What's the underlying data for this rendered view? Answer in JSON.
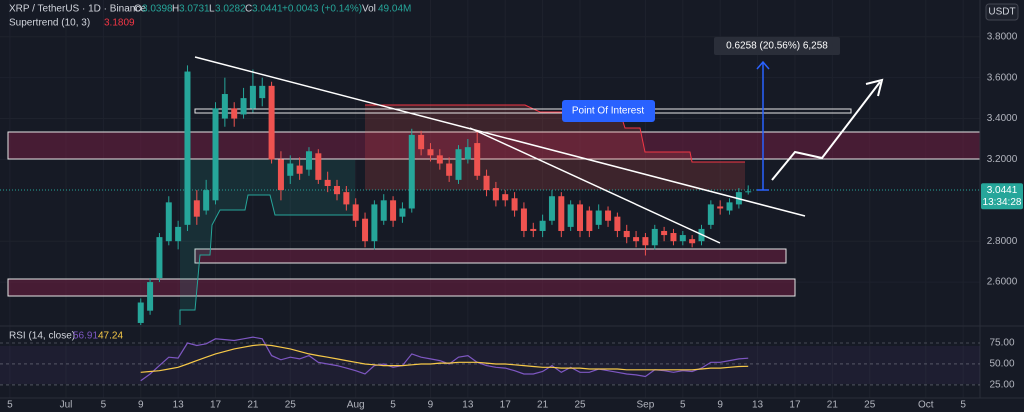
{
  "chart_data": {
    "type": "candlestick",
    "symbol": "XRP / TetherUS · 1D · Binance",
    "currency": "USDT",
    "readout_labels": [
      "O",
      "H",
      "L",
      "C"
    ],
    "change": "+0.0043 (+0.14%)",
    "volume_label": "Vol",
    "volume": "49.04M",
    "countdown": "13:34:28",
    "up_color": "#26a69a",
    "down_color": "#ef5350",
    "grid": true,
    "x": [
      8,
      9,
      10,
      11,
      12,
      13,
      14,
      15,
      16,
      17,
      18,
      19,
      20,
      21,
      22,
      23,
      24,
      25,
      26,
      27,
      28,
      29,
      30,
      31,
      32,
      33,
      34,
      35,
      36,
      37,
      38,
      39,
      40,
      41,
      42,
      43,
      44,
      45,
      46,
      47,
      48,
      49,
      50,
      51,
      52,
      53,
      54,
      55,
      56,
      57,
      58,
      59,
      60,
      61,
      62,
      63,
      64,
      65,
      66,
      67,
      68,
      69,
      70,
      71,
      72,
      73
    ],
    "open": [
      2.4,
      2.46,
      2.62,
      2.8,
      2.8,
      2.88,
      3.0,
      2.95,
      3.0,
      3.4,
      3.45,
      3.42,
      3.45,
      3.5,
      3.56,
      3.2,
      3.12,
      3.17,
      3.15,
      3.23,
      3.1,
      3.07,
      3.04,
      2.98,
      2.91,
      2.8,
      2.9,
      3.0,
      2.92,
      2.96,
      3.32,
      3.25,
      3.22,
      3.18,
      3.1,
      3.2,
      3.28,
      3.12,
      3.06,
      3.03,
      3.01,
      2.96,
      2.86,
      2.85,
      2.9,
      3.02,
      2.87,
      2.98,
      2.95,
      2.88,
      2.95,
      2.92,
      2.85,
      2.82,
      2.82,
      2.78,
      2.85,
      2.84,
      2.8,
      2.81,
      2.8,
      2.88,
      2.97,
      2.95,
      2.98,
      3.0398
    ],
    "high": [
      2.52,
      2.62,
      2.84,
      3.02,
      2.9,
      3.66,
      3.05,
      3.1,
      3.48,
      3.6,
      3.48,
      3.55,
      3.64,
      3.6,
      3.58,
      3.24,
      3.22,
      3.21,
      3.26,
      3.25,
      3.14,
      3.1,
      3.07,
      3.01,
      2.94,
      3.0,
      3.03,
      3.02,
      2.99,
      3.35,
      3.34,
      3.28,
      3.25,
      3.21,
      3.27,
      3.3,
      3.34,
      3.15,
      3.09,
      3.05,
      3.04,
      2.99,
      2.89,
      2.93,
      3.05,
      3.04,
      3.0,
      3.0,
      2.97,
      2.98,
      2.97,
      2.94,
      2.88,
      2.85,
      2.84,
      2.88,
      2.87,
      2.86,
      2.85,
      2.83,
      2.88,
      3.0,
      3.0,
      3.01,
      3.06,
      3.0731
    ],
    "low": [
      2.39,
      2.44,
      2.6,
      2.78,
      2.76,
      2.85,
      2.88,
      2.93,
      2.98,
      3.36,
      3.36,
      3.4,
      3.43,
      3.46,
      3.18,
      3.0,
      3.08,
      3.1,
      3.12,
      3.08,
      3.04,
      3.0,
      2.95,
      2.87,
      2.77,
      2.76,
      2.88,
      2.87,
      2.89,
      2.94,
      3.22,
      3.19,
      3.15,
      3.09,
      3.08,
      3.18,
      3.1,
      3.02,
      2.97,
      2.97,
      2.92,
      2.82,
      2.82,
      2.82,
      2.88,
      2.82,
      2.85,
      2.82,
      2.82,
      2.86,
      2.87,
      2.82,
      2.79,
      2.77,
      2.73,
      2.76,
      2.8,
      2.78,
      2.78,
      2.77,
      2.78,
      2.86,
      2.93,
      2.93,
      2.96,
      3.0282
    ],
    "close": [
      2.5,
      2.6,
      2.82,
      2.99,
      2.87,
      3.63,
      2.92,
      3.05,
      3.45,
      3.52,
      3.4,
      3.5,
      3.56,
      3.56,
      3.2,
      3.05,
      3.18,
      3.13,
      3.24,
      3.1,
      3.07,
      3.03,
      2.98,
      2.9,
      2.8,
      2.98,
      3.0,
      2.9,
      2.96,
      3.32,
      3.25,
      3.22,
      3.18,
      3.12,
      3.25,
      3.26,
      3.12,
      3.05,
      3.0,
      3.0,
      2.95,
      2.85,
      2.85,
      2.9,
      3.02,
      2.85,
      2.98,
      2.85,
      2.85,
      2.95,
      2.9,
      2.85,
      2.82,
      2.8,
      2.78,
      2.86,
      2.83,
      2.8,
      2.83,
      2.79,
      2.86,
      2.98,
      2.96,
      2.99,
      3.04,
      3.0441
    ],
    "xlim": [
      -7.06,
      97.8
    ],
    "xticks": [
      {
        "value": -6,
        "label": "5"
      },
      {
        "value": 0,
        "label": "Jul"
      },
      {
        "value": 4,
        "label": "5"
      },
      {
        "value": 8,
        "label": "9"
      },
      {
        "value": 12,
        "label": "13"
      },
      {
        "value": 16,
        "label": "17"
      },
      {
        "value": 20,
        "label": "21"
      },
      {
        "value": 24,
        "label": "25"
      },
      {
        "value": 31,
        "label": "Aug"
      },
      {
        "value": 35,
        "label": "5"
      },
      {
        "value": 39,
        "label": "9"
      },
      {
        "value": 43,
        "label": "13"
      },
      {
        "value": 47,
        "label": "17"
      },
      {
        "value": 51,
        "label": "21"
      },
      {
        "value": 55,
        "label": "25"
      },
      {
        "value": 62,
        "label": "Sep"
      },
      {
        "value": 66,
        "label": "5"
      },
      {
        "value": 70,
        "label": "9"
      },
      {
        "value": 74,
        "label": "13"
      },
      {
        "value": 78,
        "label": "17"
      },
      {
        "value": 82,
        "label": "21"
      },
      {
        "value": 86,
        "label": "25"
      },
      {
        "value": 92,
        "label": "Oct"
      },
      {
        "value": 96,
        "label": "5"
      }
    ],
    "ylim": [
      2.39,
      3.98
    ],
    "yticks": [
      {
        "value": 2.6,
        "label": "2.6000"
      },
      {
        "value": 2.8,
        "label": "2.8000"
      },
      {
        "value": 3.2,
        "label": "3.2000"
      },
      {
        "value": 3.4,
        "label": "3.4000"
      },
      {
        "value": 3.6,
        "label": "3.6000"
      },
      {
        "value": 3.8,
        "label": "3.8000"
      }
    ],
    "supertrend": {
      "name": "Supertrend (10, 3)",
      "value": 3.1809,
      "color": "#f23645"
    },
    "rsi": {
      "name": "RSI (14, close)",
      "color": "#7e57c2",
      "values": [
        30,
        38,
        48,
        58,
        57,
        75,
        72,
        74,
        80,
        79,
        78,
        80,
        82,
        80,
        60,
        55,
        58,
        56,
        60,
        52,
        50,
        48,
        45,
        42,
        38,
        48,
        50,
        46,
        48,
        62,
        58,
        56,
        54,
        50,
        58,
        60,
        52,
        48,
        46,
        45,
        42,
        38,
        38,
        41,
        48,
        40,
        46,
        40,
        40,
        44,
        42,
        40,
        38,
        37,
        35,
        43,
        42,
        40,
        42,
        41,
        45,
        52,
        52,
        54,
        56,
        56.91
      ]
    },
    "rsi_ma": {
      "color": "#f7c948",
      "values": [
        40,
        41,
        42,
        44,
        46,
        50,
        54,
        58,
        62,
        65,
        68,
        70,
        72,
        73,
        72,
        70,
        68,
        65,
        62,
        60,
        58,
        56,
        54,
        52,
        50,
        49,
        48,
        48,
        48,
        49,
        50,
        50,
        51,
        51,
        52,
        52,
        52,
        51,
        50,
        50,
        49,
        48,
        47,
        46,
        46,
        45,
        45,
        45,
        44,
        44,
        44,
        44,
        43,
        43,
        43,
        43,
        43,
        43,
        43,
        43,
        44,
        45,
        45,
        46,
        47,
        47.24
      ]
    },
    "rsi_ylim": [
      7,
      90.5
    ],
    "rsi_yticks": [
      {
        "value": 25,
        "label": "25.00"
      },
      {
        "value": 50,
        "label": "50.00"
      },
      {
        "value": 75,
        "label": "75.00"
      }
    ],
    "annotations": {
      "poi": "Point Of Interest",
      "measure": "0.6258 (20.56%) 6,258"
    }
  }
}
